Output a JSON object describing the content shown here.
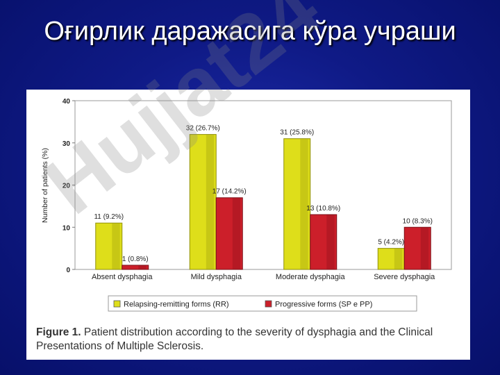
{
  "slide": {
    "title": "Оғирлик даражасига кўра учраши"
  },
  "chart_data": {
    "type": "bar",
    "title": "",
    "xlabel": "",
    "ylabel": "Number of patients (%)",
    "ylim": [
      0,
      40
    ],
    "yticks": [
      0,
      10,
      20,
      30,
      40
    ],
    "categories": [
      "Absent dysphagia",
      "Mild dysphagia",
      "Moderate dysphagia",
      "Severe dysphagia"
    ],
    "series": [
      {
        "name": "Relapsing-remitting forms (RR)",
        "color": "#dede1a",
        "values": [
          11,
          32,
          31,
          5
        ],
        "labels": [
          "11 (9.2%)",
          "32 (26.7%)",
          "31 (25.8%)",
          "5 (4.2%)"
        ]
      },
      {
        "name": "Progressive forms (SP e PP)",
        "color": "#cc1f2a",
        "values": [
          1,
          17,
          13,
          10
        ],
        "labels": [
          "1 (0.8%)",
          "17 (14.2%)",
          "13 (10.8%)",
          "10 (8.3%)"
        ]
      }
    ],
    "grid": false,
    "legend_position": "bottom"
  },
  "caption": {
    "label": "Figure 1.",
    "text": "Patient distribution according to the severity of dysphagia and the Clinical Presentations of Multiple Sclerosis."
  },
  "watermark": {
    "text": "Hujjat24"
  }
}
